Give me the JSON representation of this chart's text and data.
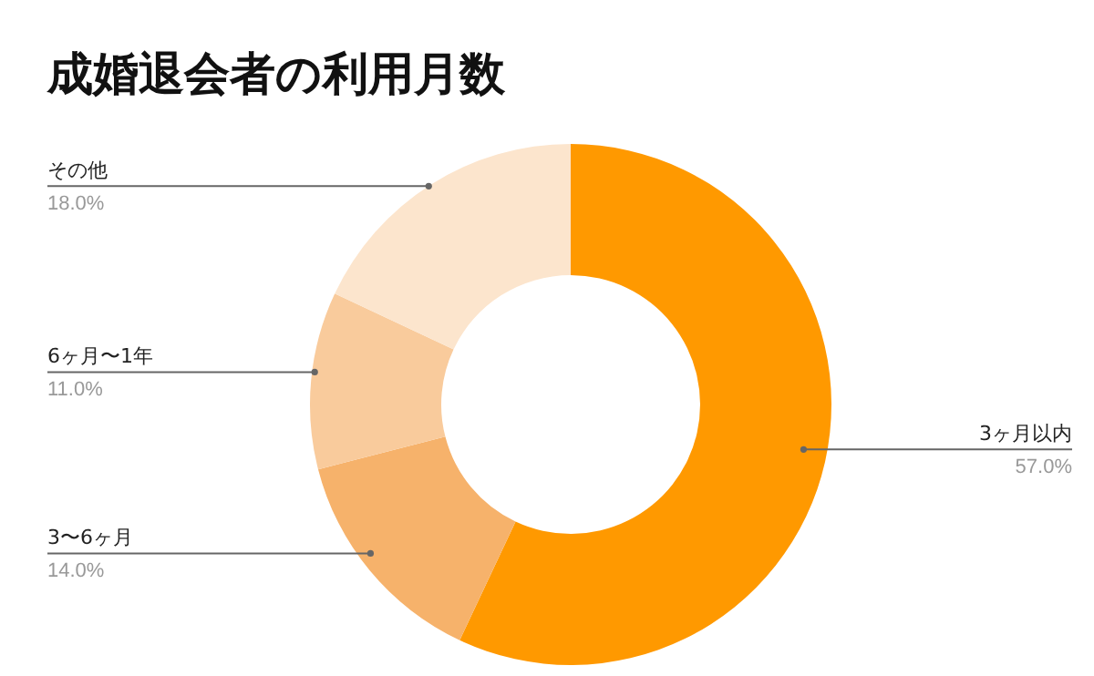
{
  "chart_data": {
    "type": "donut",
    "title": "成婚退会者の利用月数",
    "categories": [
      "3ヶ月以内",
      "3〜6ヶ月",
      "6ヶ月〜1年",
      "その他"
    ],
    "values": [
      57,
      14,
      11,
      18
    ],
    "value_labels": [
      "57.0%",
      "14.0%",
      "11.0%",
      "18.0%"
    ],
    "colors": [
      "#ff9900",
      "#f6b26b",
      "#f9cb9c",
      "#fce5cd"
    ],
    "legend": false
  }
}
